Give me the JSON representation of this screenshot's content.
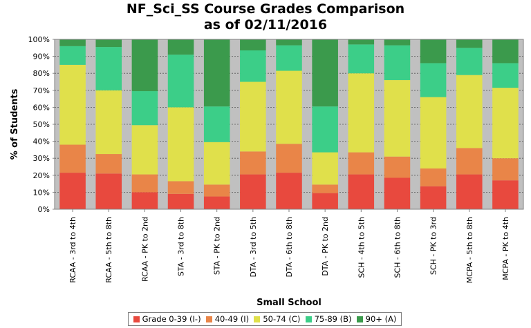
{
  "chart_data": {
    "type": "bar",
    "stacked": true,
    "title": [
      "NF_Sci_SS Course Grades Comparison",
      "as of 02/11/2016"
    ],
    "xlabel": "Small School",
    "ylabel": "% of Students",
    "ylim": [
      0,
      100
    ],
    "y_ticks": [
      "0%",
      "10%",
      "20%",
      "30%",
      "40%",
      "50%",
      "60%",
      "70%",
      "80%",
      "90%",
      "100%"
    ],
    "grid": true,
    "legend_position": "bottom",
    "categories": [
      "RCAA - 3rd to 4th",
      "RCAA - 5th to 8th",
      "RCAA - PK to 2nd",
      "STA - 3rd to 8th",
      "STA - PK to 2nd",
      "DTA - 3rd to 5th",
      "DTA - 6th to 8th",
      "DTA - PK to 2nd",
      "SCH - 4th to 5th",
      "SCH - 6th to 8th",
      "SCH - PK to 3rd",
      "MCPA - 5th to 8th",
      "MCPA - PK to 4th"
    ],
    "series": [
      {
        "name": "Grade 0-39 (I-)",
        "color": "#e8493e",
        "values": [
          21.5,
          21,
          10,
          9,
          7.5,
          20.5,
          21.5,
          9.5,
          20.5,
          18.5,
          13.5,
          20.5,
          17
        ]
      },
      {
        "name": "40-49 (I)",
        "color": "#e98548",
        "values": [
          16.5,
          11.5,
          10.5,
          7.5,
          7,
          13.5,
          17,
          5,
          13,
          12.5,
          10.5,
          15.5,
          13
        ]
      },
      {
        "name": "50-74 (C)",
        "color": "#e0e04b",
        "values": [
          47,
          37.5,
          29,
          43.5,
          25,
          41,
          43,
          19,
          46.5,
          45,
          42,
          43,
          41.5
        ]
      },
      {
        "name": "75-89 (B)",
        "color": "#3cce88",
        "values": [
          11,
          25.5,
          20,
          31,
          21,
          18.5,
          15,
          27,
          17,
          20.5,
          20,
          16,
          14.5
        ]
      },
      {
        "name": "90+ (A)",
        "color": "#3b9a4c",
        "values": [
          4,
          4.5,
          30.5,
          9,
          39.5,
          6.5,
          3.5,
          39.5,
          3,
          3.5,
          14,
          5,
          14
        ]
      }
    ]
  }
}
